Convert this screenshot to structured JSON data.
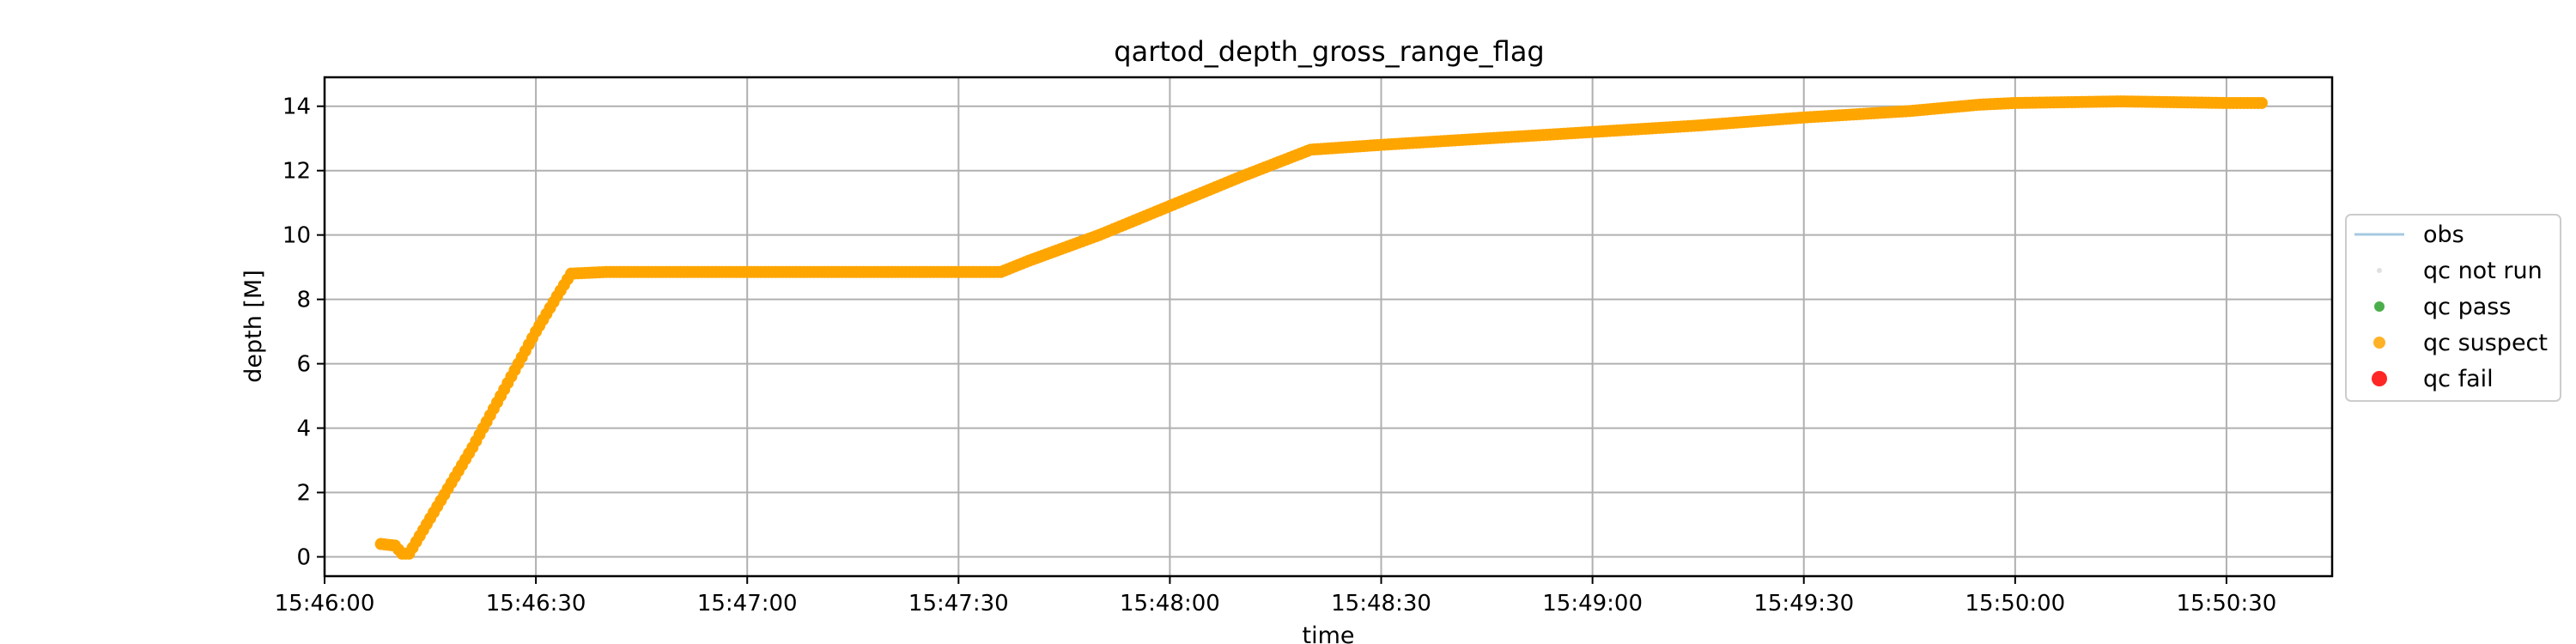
{
  "chart_data": {
    "type": "scatter",
    "title": "qartod_depth_gross_range_flag",
    "xlabel": "time",
    "ylabel": "depth [M]",
    "x_unit": "time (HH:MM:SS)",
    "xlim": [
      "15:46:00",
      "15:50:45"
    ],
    "ylim": [
      -0.6,
      14.9
    ],
    "x_ticks": [
      "15:46:00",
      "15:46:30",
      "15:47:00",
      "15:47:30",
      "15:48:00",
      "15:48:30",
      "15:49:00",
      "15:49:30",
      "15:50:00",
      "15:50:30"
    ],
    "y_ticks": [
      "0",
      "2",
      "4",
      "6",
      "8",
      "10",
      "12",
      "14"
    ],
    "grid": true,
    "legend_position": "right, outside",
    "legend": [
      {
        "label": "obs",
        "marker": "line",
        "color": "#1f77b4"
      },
      {
        "label": "qc not run",
        "marker": "dot",
        "color": "#cccccc"
      },
      {
        "label": "qc pass",
        "marker": "dot",
        "color": "#2ca02c"
      },
      {
        "label": "qc suspect",
        "marker": "dot",
        "color": "#ffa500"
      },
      {
        "label": "qc fail",
        "marker": "dot",
        "color": "#ff0000"
      }
    ],
    "series": [
      {
        "name": "qc suspect",
        "color": "#ffa500",
        "x": [
          "15:46:08",
          "15:46:10",
          "15:46:11",
          "15:46:12",
          "15:46:15",
          "15:46:18",
          "15:46:21",
          "15:46:24",
          "15:46:27",
          "15:46:30",
          "15:46:33",
          "15:46:35",
          "15:46:40",
          "15:47:00",
          "15:47:20",
          "15:47:36",
          "15:47:40",
          "15:47:50",
          "15:48:00",
          "15:48:10",
          "15:48:20",
          "15:48:30",
          "15:48:45",
          "15:49:00",
          "15:49:15",
          "15:49:30",
          "15:49:45",
          "15:49:55",
          "15:50:00",
          "15:50:15",
          "15:50:30",
          "15:50:35"
        ],
        "y": [
          0.4,
          0.35,
          0.1,
          0.1,
          1.2,
          2.3,
          3.4,
          4.6,
          5.8,
          7.0,
          8.1,
          8.8,
          8.85,
          8.85,
          8.85,
          8.85,
          9.2,
          10.0,
          10.9,
          11.8,
          12.65,
          12.8,
          13.0,
          13.2,
          13.4,
          13.65,
          13.85,
          14.05,
          14.1,
          14.15,
          14.1,
          14.1
        ]
      }
    ]
  }
}
